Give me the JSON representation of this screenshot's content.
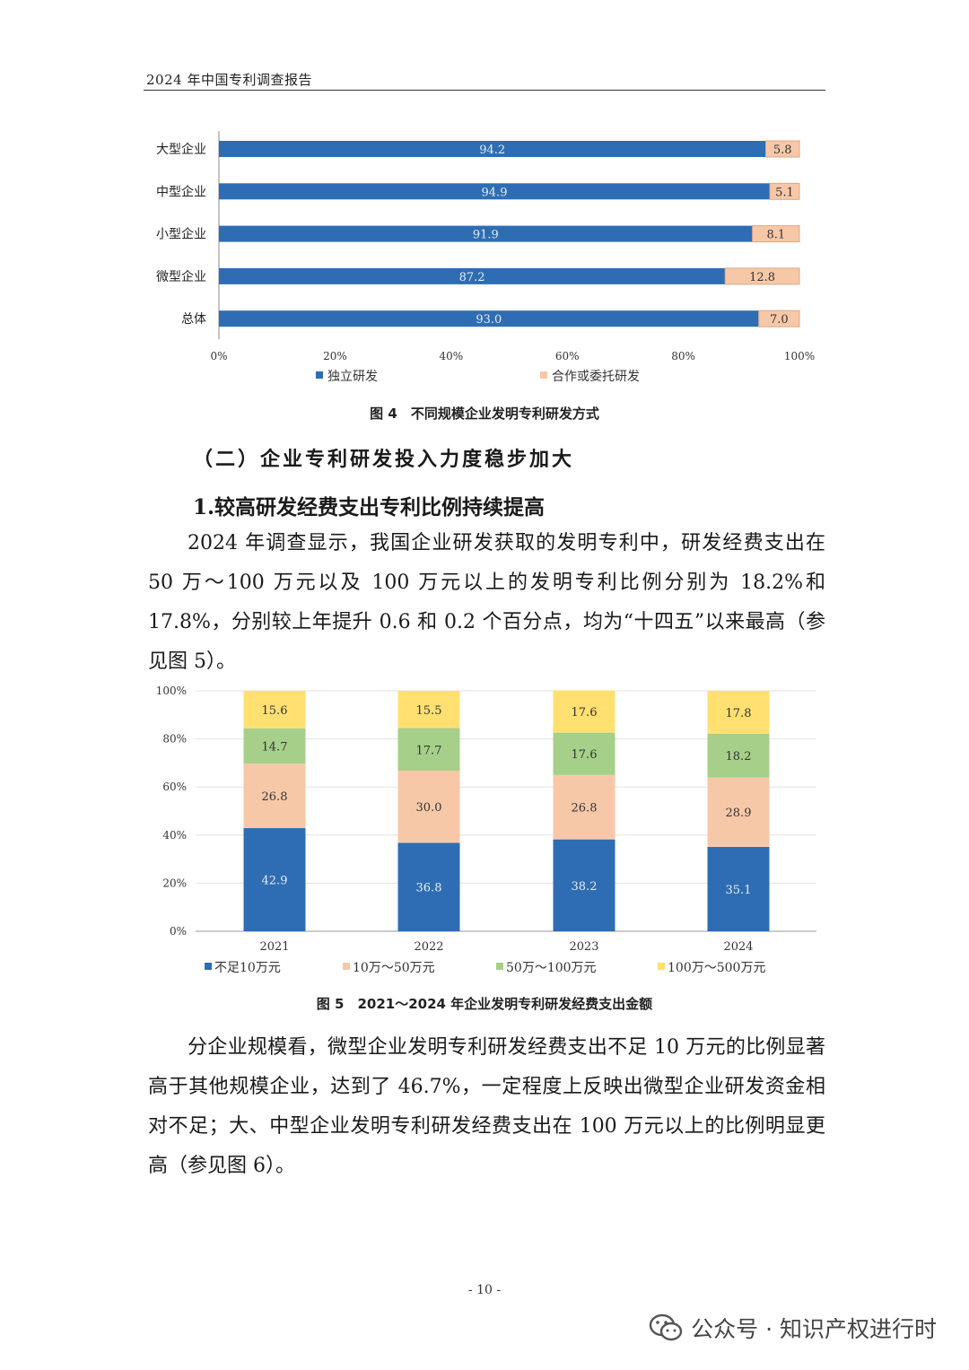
{
  "header": {
    "title": "2024 年中国专利调查报告"
  },
  "figure4": {
    "caption": "图 4　不同规模企业发明专利研发方式",
    "chart_data": {
      "type": "bar",
      "orientation": "horizontal",
      "stacked": true,
      "categories": [
        "大型企业",
        "中型企业",
        "小型企业",
        "微型企业",
        "总体"
      ],
      "series": [
        {
          "name": "独立研发",
          "values": [
            94.2,
            94.9,
            91.9,
            87.2,
            93.0
          ],
          "color": "#2E6DB4"
        },
        {
          "name": "合作或委托研发",
          "values": [
            5.8,
            5.1,
            8.1,
            12.8,
            7.0
          ],
          "color": "#F7C8A8"
        }
      ],
      "value_labels": [
        [
          "94.2",
          "94.9",
          "91.9",
          "87.2",
          "93.0"
        ],
        [
          "5.8",
          "5.1",
          "8.1",
          "12.8",
          "7.0"
        ]
      ],
      "xticks": [
        "0%",
        "20%",
        "40%",
        "60%",
        "80%",
        "100%"
      ],
      "xlim": [
        0,
        100
      ],
      "legend": "bottom"
    }
  },
  "section_heading": "（二）企业专利研发投入力度稳步加大",
  "subheading": "1.较高研发经费支出专利比例持续提高",
  "paragraph1": "2024 年调查显示，我国企业研发获取的发明专利中，研发经费支出在 50 万～100 万元以及 100 万元以上的发明专利比例分别为 18.2%和 17.8%，分别较上年提升 0.6 和 0.2 个百分点，均为“十四五”以来最高（参见图 5）。",
  "figure5": {
    "caption": "图 5　2021～2024 年企业发明专利研发经费支出金额",
    "chart_data": {
      "type": "bar",
      "stacked": true,
      "categories": [
        "2021",
        "2022",
        "2023",
        "2024"
      ],
      "series": [
        {
          "name": "不足10万元",
          "values": [
            42.9,
            36.8,
            38.2,
            35.1
          ],
          "color": "#2E6DB4"
        },
        {
          "name": "10万～50万元",
          "values": [
            26.8,
            30.0,
            26.8,
            28.9
          ],
          "color": "#F7C8A8"
        },
        {
          "name": "50万～100万元",
          "values": [
            14.7,
            17.7,
            17.6,
            18.2
          ],
          "color": "#A6CF8A"
        },
        {
          "name": "100万～500万元",
          "values": [
            15.6,
            15.5,
            17.6,
            17.8
          ],
          "color": "#FFE071"
        }
      ],
      "value_labels": [
        [
          "42.9",
          "36.8",
          "38.2",
          "35.1"
        ],
        [
          "26.8",
          "30.0",
          "26.8",
          "28.9"
        ],
        [
          "14.7",
          "17.7",
          "17.6",
          "18.2"
        ],
        [
          "15.6",
          "15.5",
          "17.6",
          "17.8"
        ]
      ],
      "yticks": [
        "0%",
        "20%",
        "40%",
        "60%",
        "80%",
        "100%"
      ],
      "ylim": [
        0,
        100
      ],
      "grid": true,
      "legend": "bottom"
    }
  },
  "paragraph2": "分企业规模看，微型企业发明专利研发经费支出不足 10 万元的比例显著高于其他规模企业，达到了 46.7%，一定程度上反映出微型企业研发资金相对不足；大、中型企业发明专利研发经费支出在 100 万元以上的比例明显更高（参见图 6）。",
  "page_number": "- 10 -",
  "watermark": {
    "text": "公众号 · 知识产权进行时",
    "icon": "wechat-icon"
  }
}
